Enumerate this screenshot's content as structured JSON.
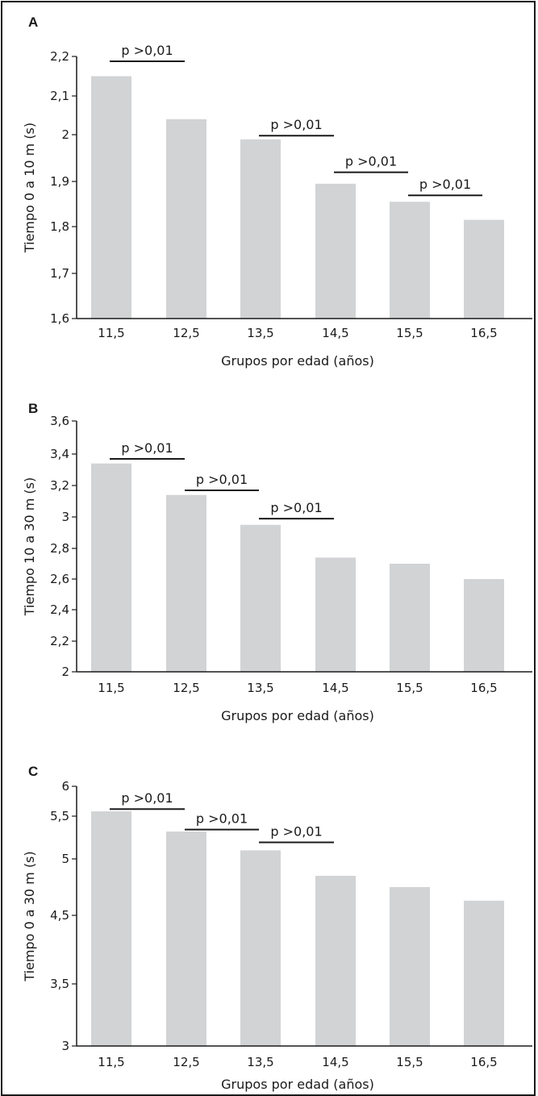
{
  "chart_data": [
    {
      "type": "bar",
      "panel": "A",
      "categories": [
        "11,5",
        "12,5",
        "13,5",
        "14,5",
        "15,5",
        "16,5"
      ],
      "values": [
        2.15,
        2.04,
        1.99,
        1.895,
        1.855,
        1.815
      ],
      "ylim": [
        1.6,
        2.2
      ],
      "yticks": [
        {
          "v": 1.6,
          "label": "1,6"
        },
        {
          "v": 1.7,
          "label": "1,7"
        },
        {
          "v": 1.8,
          "label": "1,8"
        },
        {
          "v": 1.9,
          "label": "1,9"
        },
        {
          "v": 2.0,
          "label": "2"
        },
        {
          "v": 2.1,
          "label": "2,1"
        },
        {
          "v": 2.2,
          "label": "2,2"
        }
      ],
      "xlabel": "Grupos por edad (años)",
      "ylabel": "Tiempo 0 a 10 m (s)",
      "bar_color": "#d1d3d4",
      "grid": false,
      "annotations": [
        {
          "text": "p >0,01",
          "from": 0,
          "to": 1,
          "y": 2.2
        },
        {
          "text": "p >0,01",
          "from": 2,
          "to": 3,
          "y": 2.01
        },
        {
          "text": "p >0,01",
          "from": 3,
          "to": 4,
          "y": 1.93
        },
        {
          "text": "p >0,01",
          "from": 4,
          "to": 5,
          "y": 1.88
        }
      ]
    },
    {
      "type": "bar",
      "panel": "B",
      "categories": [
        "11,5",
        "12,5",
        "13,5",
        "14,5",
        "15,5",
        "16,5"
      ],
      "values": [
        3.34,
        3.14,
        2.95,
        2.74,
        2.7,
        2.6
      ],
      "ylim": [
        2,
        3.6
      ],
      "yticks": [
        {
          "v": 2.0,
          "label": "2"
        },
        {
          "v": 2.2,
          "label": "2,2"
        },
        {
          "v": 2.4,
          "label": "2,4"
        },
        {
          "v": 2.6,
          "label": "2,6"
        },
        {
          "v": 2.8,
          "label": "2,8"
        },
        {
          "v": 3.0,
          "label": "3"
        },
        {
          "v": 3.2,
          "label": "3,2"
        },
        {
          "v": 3.4,
          "label": "3,4"
        },
        {
          "v": 3.6,
          "label": "3,6"
        }
      ],
      "xlabel": "Grupos por edad (años)",
      "ylabel": "Tiempo 10 a 30 m (s)",
      "bar_color": "#d1d3d4",
      "grid": false,
      "annotations": [
        {
          "text": "p >0,01",
          "from": 0,
          "to": 1,
          "y": 3.4
        },
        {
          "text": "p >0,01",
          "from": 1,
          "to": 2,
          "y": 3.2
        },
        {
          "text": "p >0,01",
          "from": 2,
          "to": 3,
          "y": 3.02
        }
      ]
    },
    {
      "type": "bar",
      "panel": "C",
      "categories": [
        "11,5",
        "12,5",
        "13,5",
        "14,5",
        "15,5",
        "16,5"
      ],
      "values": [
        5.58,
        5.32,
        5.1,
        4.85,
        4.75,
        4.63
      ],
      "ylim": [
        3,
        6
      ],
      "yticks": [
        {
          "v": 3.0,
          "label": "3"
        },
        {
          "v": 3.5,
          "label": "3,5"
        },
        {
          "v": 4.5,
          "label": "4,5"
        },
        {
          "v": 5.0,
          "label": "5"
        },
        {
          "v": 5.5,
          "label": "5,5"
        },
        {
          "v": 6.0,
          "label": "6"
        }
      ],
      "yticks_note": "original axis labels skip 4 (printed sequence 3, 3,5, 4,5, 5, 5,5, 6 at equal spacing)",
      "xlabel": "Grupos por edad (años)",
      "ylabel": "Tiempo 0 a 30 m (s)",
      "bar_color": "#d1d3d4",
      "grid": false,
      "annotations": [
        {
          "text": "p >0,01",
          "from": 0,
          "to": 1,
          "y": 5.7
        },
        {
          "text": "p >0,01",
          "from": 1,
          "to": 2,
          "y": 5.4
        },
        {
          "text": "p >0,01",
          "from": 2,
          "to": 3,
          "y": 5.25
        }
      ]
    }
  ]
}
